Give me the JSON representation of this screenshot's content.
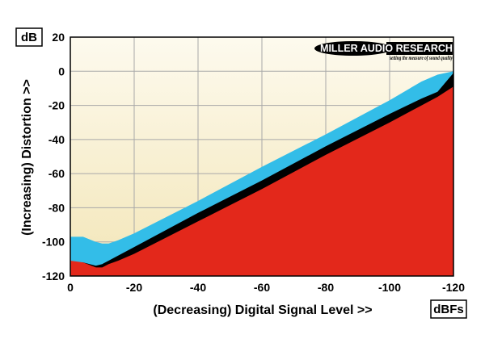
{
  "chart_data": {
    "type": "area",
    "title": "",
    "xlabel": "(Decreasing) Digital Signal Level >>",
    "ylabel": "(Increasing) Distortion >>",
    "x_unit": "dBFs",
    "y_unit": "dB",
    "xlim": [
      0,
      -120
    ],
    "ylim": [
      -120,
      20
    ],
    "x_ticks": [
      0,
      -20,
      -40,
      -60,
      -80,
      -100,
      -120
    ],
    "y_ticks": [
      20,
      0,
      -20,
      -40,
      -60,
      -80,
      -100,
      -120
    ],
    "x_tick_labels": [
      "0",
      "-20",
      "-40",
      "-60",
      "-80",
      "-100",
      "-120"
    ],
    "y_tick_labels": [
      "20",
      "0",
      "-20",
      "-40",
      "-60",
      "-80",
      "-100",
      "-120"
    ],
    "grid": true,
    "series": [
      {
        "color": "#33bde8",
        "x": [
          0,
          -4,
          -8,
          -10,
          -12,
          -15,
          -20,
          -40,
          -60,
          -80,
          -100,
          -110,
          -115,
          -120
        ],
        "y": [
          -97,
          -97,
          -100,
          -101,
          -101,
          -99,
          -95,
          -76,
          -56,
          -37,
          -17,
          -6,
          -2,
          0
        ]
      },
      {
        "color": "#000000",
        "x": [
          0,
          -4,
          -8,
          -10,
          -12,
          -15,
          -20,
          -40,
          -60,
          -80,
          -100,
          -110,
          -115,
          -120
        ],
        "y": [
          -112,
          -112,
          -114,
          -113,
          -111,
          -108,
          -103,
          -83,
          -64,
          -44,
          -25,
          -16,
          -12,
          -1
        ]
      },
      {
        "color": "#e3281b",
        "x": [
          0,
          -4,
          -8,
          -10,
          -12,
          -15,
          -20,
          -40,
          -60,
          -80,
          -100,
          -110,
          -115,
          -120
        ],
        "y": [
          -111,
          -112,
          -115,
          -115,
          -113,
          -111,
          -107,
          -88,
          -69,
          -49,
          -30,
          -20,
          -15,
          -9
        ]
      }
    ],
    "background": {
      "top": "#fdfaee",
      "bottom": "#f3e6b8"
    },
    "logo": {
      "name": "MILLER AUDIO RESEARCH",
      "tagline": "setting the measure of sound quality"
    }
  }
}
